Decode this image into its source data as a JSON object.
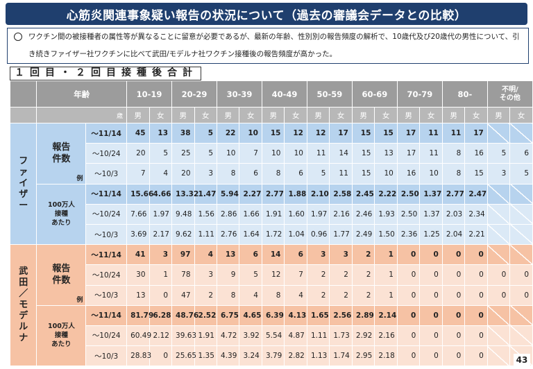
{
  "title": "心筋炎関連事象疑い報告の状況について（過去の審議会データとの比較）",
  "note": "ワクチン間の被接種者の属性等が異なることに留意が必要であるが、最新の年齢、性別別の報告頻度の解析で、10歳代及び20歳代の男性について、引き続きファイザー社ワクチンに比べて武田/モデルナ社ワクチン接種後の報告頻度が高かった。",
  "subtitle": "１回目・２回目接種後合計",
  "table": {
    "age_label": "年齢",
    "age_unit": "歳",
    "unit_count": "例",
    "age_groups": [
      "10-19",
      "20-29",
      "30-39",
      "40-49",
      "50-59",
      "60-69",
      "70-79",
      "80-"
    ],
    "unknown_line1": "不明/",
    "unknown_line2": "その他",
    "male": "男",
    "female": "女",
    "brands": [
      {
        "name": "ファイザー",
        "sections": [
          {
            "label_lines": [
              "報告",
              "件数"
            ],
            "rows": [
              {
                "date": "～11/14",
                "values": [
                  "45",
                  "13",
                  "38",
                  "5",
                  "22",
                  "10",
                  "15",
                  "12",
                  "12",
                  "17",
                  "15",
                  "15",
                  "17",
                  "11",
                  "11",
                  "17",
                  "",
                  ""
                ]
              },
              {
                "date": "～10/24",
                "values": [
                  "20",
                  "5",
                  "25",
                  "5",
                  "10",
                  "7",
                  "10",
                  "10",
                  "11",
                  "14",
                  "15",
                  "13",
                  "17",
                  "11",
                  "8",
                  "16",
                  "5",
                  "6"
                ]
              },
              {
                "date": "～10/3",
                "values": [
                  "7",
                  "4",
                  "20",
                  "3",
                  "8",
                  "6",
                  "8",
                  "6",
                  "5",
                  "11",
                  "15",
                  "10",
                  "16",
                  "10",
                  "8",
                  "15",
                  "3",
                  "5"
                ]
              }
            ]
          },
          {
            "label_lines": [
              "100万人",
              "接種",
              "あたり"
            ],
            "rows": [
              {
                "date": "～11/14",
                "values": [
                  "15.66",
                  "4.66",
                  "13.32",
                  "1.47",
                  "5.94",
                  "2.27",
                  "2.77",
                  "1.88",
                  "2.10",
                  "2.58",
                  "2.45",
                  "2.22",
                  "2.50",
                  "1.37",
                  "2.77",
                  "2.47",
                  "",
                  ""
                ]
              },
              {
                "date": "～10/24",
                "values": [
                  "7.66",
                  "1.97",
                  "9.48",
                  "1.56",
                  "2.86",
                  "1.66",
                  "1.91",
                  "1.60",
                  "1.97",
                  "2.16",
                  "2.46",
                  "1.93",
                  "2.50",
                  "1.37",
                  "2.03",
                  "2.34",
                  "",
                  ""
                ]
              },
              {
                "date": "～10/3",
                "values": [
                  "3.69",
                  "2.17",
                  "9.62",
                  "1.11",
                  "2.76",
                  "1.64",
                  "1.72",
                  "1.04",
                  "0.96",
                  "1.77",
                  "2.49",
                  "1.50",
                  "2.36",
                  "1.25",
                  "2.04",
                  "2.21",
                  "",
                  ""
                ]
              }
            ]
          }
        ]
      },
      {
        "name": "武田／モデルナ",
        "sections": [
          {
            "label_lines": [
              "報告",
              "件数"
            ],
            "rows": [
              {
                "date": "～11/14",
                "values": [
                  "41",
                  "3",
                  "97",
                  "4",
                  "13",
                  "6",
                  "14",
                  "6",
                  "3",
                  "3",
                  "2",
                  "1",
                  "0",
                  "0",
                  "0",
                  "0",
                  "",
                  ""
                ]
              },
              {
                "date": "～10/24",
                "values": [
                  "30",
                  "1",
                  "78",
                  "3",
                  "9",
                  "5",
                  "12",
                  "7",
                  "2",
                  "2",
                  "2",
                  "1",
                  "0",
                  "0",
                  "0",
                  "0",
                  "0",
                  "0"
                ]
              },
              {
                "date": "～10/3",
                "values": [
                  "13",
                  "0",
                  "47",
                  "2",
                  "8",
                  "4",
                  "8",
                  "4",
                  "2",
                  "2",
                  "2",
                  "1",
                  "0",
                  "0",
                  "0",
                  "0",
                  "0",
                  "0"
                ]
              }
            ]
          },
          {
            "label_lines": [
              "100万人",
              "接種",
              "あたり"
            ],
            "rows": [
              {
                "date": "～11/14",
                "values": [
                  "81.79",
                  "6.28",
                  "48.76",
                  "2.52",
                  "6.75",
                  "4.65",
                  "6.39",
                  "4.13",
                  "1.65",
                  "2.56",
                  "2.89",
                  "2.14",
                  "0",
                  "0",
                  "0",
                  "0",
                  "",
                  ""
                ]
              },
              {
                "date": "～10/24",
                "values": [
                  "60.49",
                  "2.12",
                  "39.63",
                  "1.91",
                  "4.72",
                  "3.92",
                  "5.54",
                  "4.87",
                  "1.11",
                  "1.73",
                  "2.92",
                  "2.16",
                  "0",
                  "0",
                  "0",
                  "0",
                  "",
                  ""
                ]
              },
              {
                "date": "～10/3",
                "values": [
                  "28.83",
                  "0",
                  "25.65",
                  "1.35",
                  "4.39",
                  "3.24",
                  "3.79",
                  "2.82",
                  "1.13",
                  "1.74",
                  "2.95",
                  "2.18",
                  "0",
                  "0",
                  "0",
                  "0",
                  "",
                  ""
                ]
              }
            ]
          }
        ]
      }
    ]
  },
  "page_number": "43"
}
